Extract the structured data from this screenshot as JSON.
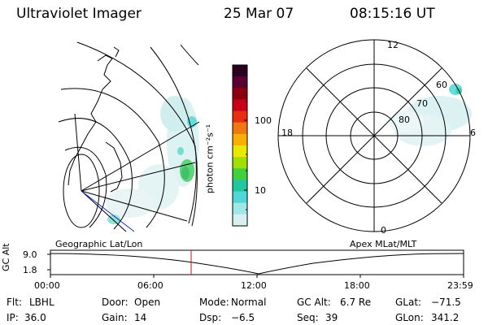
{
  "header": {
    "title": "Ultraviolet Imager",
    "date": "25 Mar 07",
    "time": "08:15:16 UT"
  },
  "colorbar": {
    "unit_label": "photon cm⁻²s⁻¹",
    "ticks": [
      "100",
      "10"
    ],
    "colors": [
      "#2a0020",
      "#5a0030",
      "#8a0010",
      "#c80018",
      "#e83010",
      "#f07810",
      "#f8b000",
      "#e8e800",
      "#a0e000",
      "#40d040",
      "#20c8a0",
      "#50d8d8",
      "#a0e8e8",
      "#d8f0f0"
    ]
  },
  "geo_panel": {
    "label": "Geographic Lat/Lon"
  },
  "polar_panel": {
    "label": "Apex MLat/MLT",
    "mlt_labels": {
      "top": "12",
      "left": "18",
      "right": "6",
      "bottom": "0"
    },
    "lat_labels": [
      "60",
      "70",
      "80"
    ]
  },
  "altitude_plot": {
    "ylabel": "GC Alt",
    "yticks": [
      "9.0",
      "1.8"
    ],
    "xticks": [
      "00:00",
      "06:00",
      "12:00",
      "18:00",
      "23:59"
    ],
    "marker_time": "08:15"
  },
  "info": {
    "filter_label": "Flt:",
    "filter_value": "LBHL",
    "door_label": "Door:",
    "door_value": "Open",
    "mode_label": "Mode:",
    "mode_value": "Normal",
    "gcalt_label": "GC Alt:",
    "gcalt_value": "6.7 Re",
    "glat_label": "GLat:",
    "glat_value": "−71.5",
    "ip_label": "IP:",
    "ip_value": "36.0",
    "gain_label": "Gain:",
    "gain_value": "14",
    "dsp_label": "Dsp:",
    "dsp_value": "−6.5",
    "seq_label": "Seq:",
    "seq_value": "39",
    "glon_label": "GLon:",
    "glon_value": "341.2"
  }
}
